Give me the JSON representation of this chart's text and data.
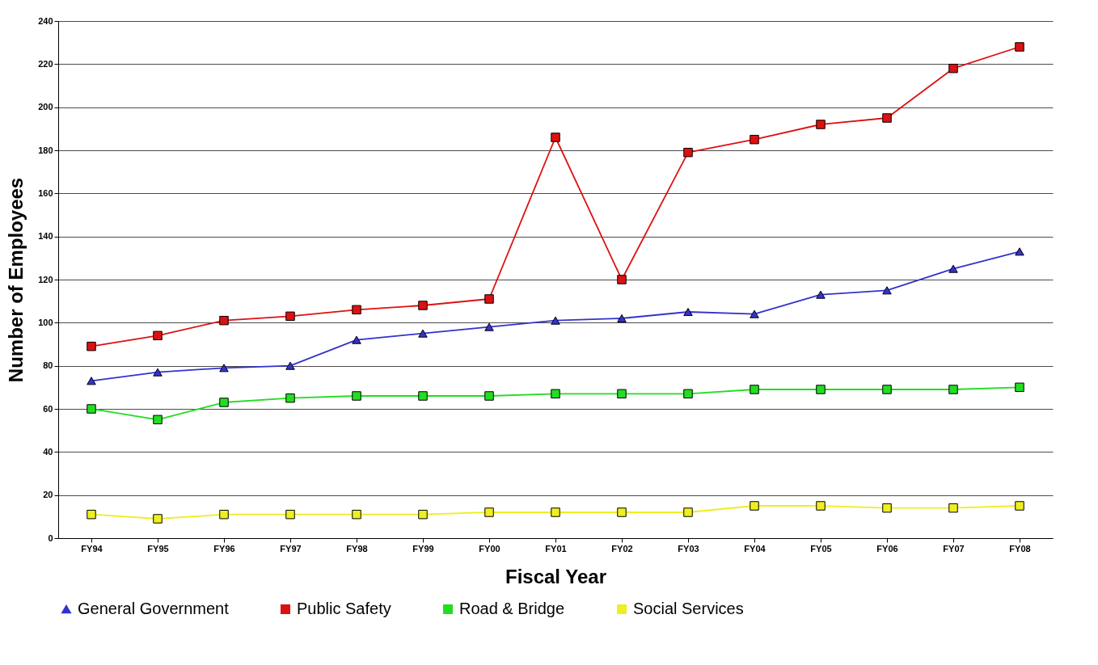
{
  "chart_data": {
    "type": "line",
    "xlabel": "Fiscal Year",
    "ylabel": "Number of Employees",
    "categories": [
      "FY94",
      "FY95",
      "FY96",
      "FY97",
      "FY98",
      "FY99",
      "FY00",
      "FY01",
      "FY02",
      "FY03",
      "FY04",
      "FY05",
      "FY06",
      "FY07",
      "FY08"
    ],
    "series": [
      {
        "name": "General Government",
        "color": "#3333cc",
        "marker": "triangle",
        "values": [
          73,
          77,
          79,
          80,
          92,
          95,
          98,
          101,
          102,
          105,
          104,
          113,
          115,
          125,
          133
        ]
      },
      {
        "name": "Public Safety",
        "color": "#dd1111",
        "marker": "square",
        "values": [
          89,
          94,
          101,
          103,
          106,
          108,
          111,
          186,
          120,
          179,
          185,
          192,
          195,
          218,
          228
        ]
      },
      {
        "name": "Road & Bridge",
        "color": "#22dd22",
        "marker": "square",
        "values": [
          60,
          55,
          63,
          65,
          66,
          66,
          66,
          67,
          67,
          67,
          69,
          69,
          69,
          69,
          70
        ]
      },
      {
        "name": "Social Services",
        "color": "#eeee22",
        "marker": "square",
        "values": [
          11,
          9,
          11,
          11,
          11,
          11,
          12,
          12,
          12,
          12,
          15,
          15,
          14,
          14,
          15
        ]
      }
    ],
    "ylim": [
      0,
      240
    ],
    "yticks": [
      0,
      20,
      40,
      60,
      80,
      100,
      120,
      140,
      160,
      180,
      200,
      220,
      240
    ],
    "grid": "y",
    "legend": "bottom"
  }
}
